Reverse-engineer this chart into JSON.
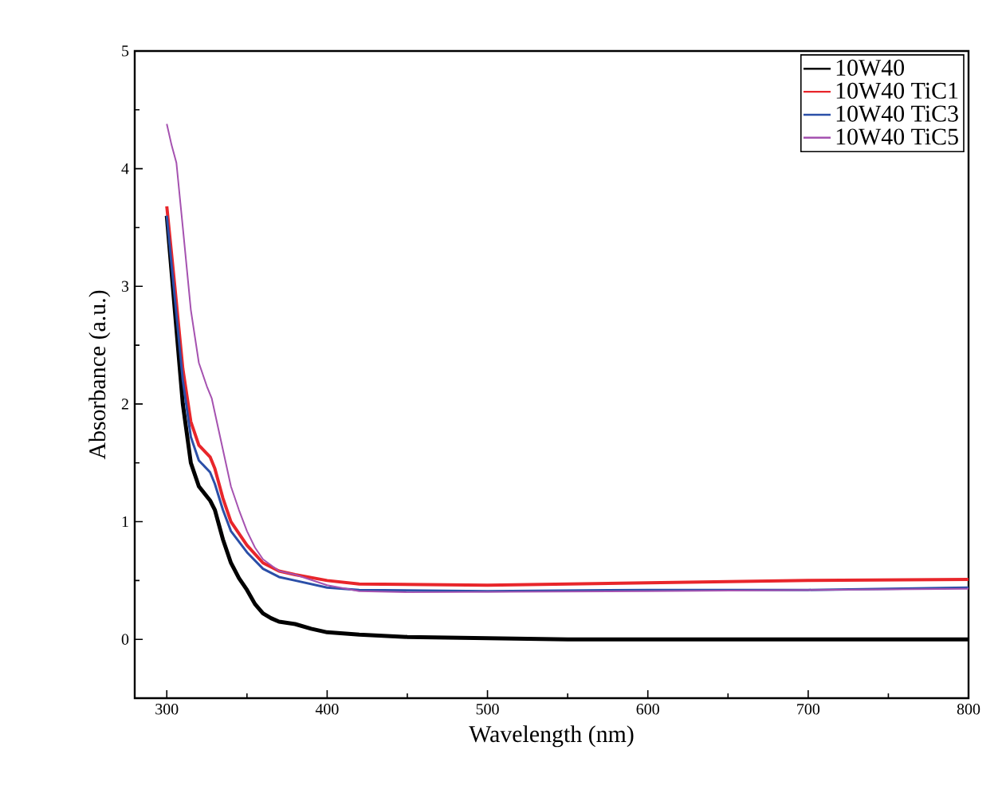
{
  "chart_data": {
    "type": "line",
    "xlabel": "Wavelength (nm)",
    "ylabel": "Absorbance (a.u.)",
    "xlim": [
      280,
      800
    ],
    "ylim": [
      -0.5,
      5
    ],
    "xticks": [
      300,
      400,
      500,
      600,
      700,
      800
    ],
    "yticks": [
      0,
      1,
      2,
      3,
      4,
      5
    ],
    "legend": "top right",
    "series": [
      {
        "name": "10W40",
        "color": "#000000",
        "x": [
          300,
          305,
          310,
          315,
          320,
          327,
          330,
          335,
          340,
          345,
          350,
          355,
          360,
          365,
          370,
          380,
          390,
          400,
          420,
          450,
          500,
          550,
          800
        ],
        "values": [
          3.6,
          2.8,
          2.0,
          1.5,
          1.3,
          1.18,
          1.1,
          0.85,
          0.65,
          0.52,
          0.42,
          0.3,
          0.22,
          0.18,
          0.15,
          0.13,
          0.09,
          0.06,
          0.04,
          0.02,
          0.01,
          0.0,
          0.0
        ]
      },
      {
        "name": "10W40 TiC1",
        "color": "#e8262b",
        "x": [
          300,
          305,
          310,
          315,
          320,
          327,
          330,
          335,
          340,
          350,
          360,
          370,
          380,
          400,
          420,
          500,
          600,
          700,
          800
        ],
        "values": [
          3.68,
          3.0,
          2.3,
          1.85,
          1.65,
          1.55,
          1.45,
          1.2,
          1.0,
          0.8,
          0.65,
          0.58,
          0.55,
          0.5,
          0.47,
          0.46,
          0.48,
          0.5,
          0.51
        ]
      },
      {
        "name": "10W40 TiC3",
        "color": "#2b4fa8",
        "x": [
          300,
          305,
          310,
          315,
          320,
          327,
          330,
          335,
          340,
          350,
          360,
          370,
          380,
          400,
          420,
          500,
          600,
          700,
          800
        ],
        "values": [
          3.6,
          2.9,
          2.2,
          1.72,
          1.52,
          1.42,
          1.32,
          1.1,
          0.92,
          0.74,
          0.6,
          0.53,
          0.5,
          0.44,
          0.42,
          0.41,
          0.42,
          0.42,
          0.44
        ]
      },
      {
        "name": "10W40 TiC5",
        "color": "#a552b0",
        "x": [
          300,
          303,
          306,
          310,
          315,
          320,
          325,
          328,
          332,
          340,
          345,
          350,
          355,
          360,
          370,
          380,
          400,
          420,
          450,
          600,
          800
        ],
        "values": [
          4.38,
          4.2,
          4.05,
          3.5,
          2.8,
          2.35,
          2.15,
          2.05,
          1.8,
          1.3,
          1.1,
          0.92,
          0.78,
          0.68,
          0.58,
          0.55,
          0.46,
          0.41,
          0.4,
          0.41,
          0.43
        ]
      }
    ]
  }
}
